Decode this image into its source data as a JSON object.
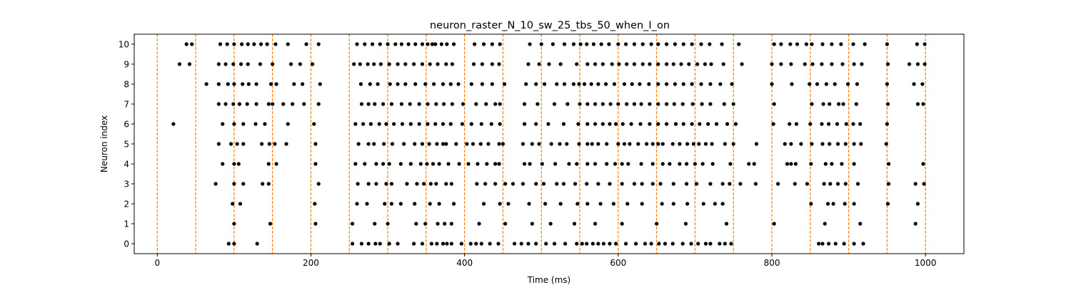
{
  "chart_data": {
    "type": "scatter",
    "title": "neuron_raster_N_10_sw_25_tbs_50_when_I_on",
    "xlabel": "Time (ms)",
    "ylabel": "Neuron index",
    "xlim": [
      -30,
      1050
    ],
    "ylim": [
      -0.5,
      10.5
    ],
    "x_ticks": [
      0,
      200,
      400,
      600,
      800,
      1000
    ],
    "y_ticks": [
      0,
      1,
      2,
      3,
      4,
      5,
      6,
      7,
      8,
      9,
      10
    ],
    "grid": false,
    "legend": "none",
    "marker_color": "#000000",
    "vline_color": "#ff7f0e",
    "vlines": [
      0,
      50,
      100,
      150,
      200,
      250,
      300,
      350,
      400,
      450,
      500,
      550,
      600,
      650,
      700,
      750,
      800,
      850,
      900,
      950,
      1000
    ],
    "series": [
      {
        "values": [
          [
            [
              93,
              100,
              130,
              254,
              266,
              275,
              284,
              290,
              302,
              313,
              334,
              345,
              357,
              364,
              372,
              377,
              383,
              396,
              408,
              415,
              422,
              433,
              444,
              465,
              474,
              483,
              493,
              506,
              517,
              531,
              546,
              553,
              559,
              567,
              574,
              581,
              589,
              597,
              610,
              623,
              635,
              643,
              653,
              661,
              671,
              684,
              695,
              704,
              714,
              720,
              732,
              739,
              747,
              861,
              866,
              874,
              883,
              894,
              907,
              919
            ]
          ],
          [
            [
              100,
              147,
              206,
              254,
              283,
              300,
              337,
              349,
              365,
              374,
              383,
              419,
              453,
              488,
              512,
              543,
              570,
              605,
              650,
              688,
              741,
              803,
              869,
              915,
              987
            ]
          ],
          [
            [
              98,
              108,
              205,
              260,
              273,
              296,
              305,
              317,
              335,
              355,
              367,
              386,
              425,
              446,
              457,
              484,
              505,
              525,
              547,
              560,
              577,
              594,
              612,
              631,
              657,
              672,
              690,
              711,
              726,
              736,
              851,
              873,
              880,
              895,
              907,
              951,
              990
            ]
          ],
          [
            [
              76,
              100,
              112,
              137,
              145,
              210,
              261,
              275,
              285,
              298,
              305,
              325,
              338,
              347,
              356,
              363,
              376,
              383,
              416,
              427,
              440,
              453,
              463,
              476,
              493,
              503,
              520,
              529,
              544,
              559,
              574,
              589,
              605,
              621,
              631,
              645,
              655,
              672,
              689,
              702,
              720,
              736,
              745,
              759,
              779,
              808,
              830,
              846,
              868,
              876,
              886,
              896,
              912,
              952,
              987,
              998
            ]
          ],
          [
            [
              85,
              100,
              106,
              145,
              155,
              206,
              258,
              270,
              285,
              294,
              302,
              317,
              330,
              343,
              351,
              359,
              367,
              379,
              393,
              405,
              417,
              429,
              440,
              445,
              478,
              485,
              501,
              518,
              536,
              546,
              560,
              570,
              585,
              596,
              605,
              613,
              630,
              645,
              658,
              667,
              680,
              689,
              700,
              710,
              723,
              746,
              770,
              777,
              820,
              825,
              831,
              851,
              870,
              878,
              891,
              907,
              952,
              997
            ]
          ],
          [
            [
              80,
              96,
              104,
              112,
              136,
              146,
              153,
              168,
              206,
              262,
              275,
              282,
              295,
              306,
              321,
              335,
              345,
              354,
              364,
              372,
              376,
              389,
              403,
              411,
              421,
              431,
              445,
              450,
              476,
              488,
              497,
              513,
              524,
              533,
              549,
              560,
              566,
              574,
              585,
              600,
              608,
              615,
              626,
              637,
              645,
              652,
              658,
              671,
              680,
              690,
              698,
              705,
              714,
              722,
              739,
              750,
              780,
              817,
              825,
              838,
              852,
              866,
              875,
              886,
              896,
              907,
              916,
              949
            ]
          ],
          [
            [
              21,
              85,
              100,
              112,
              128,
              140,
              170,
              204,
              258,
              268,
              278,
              289,
              298,
              308,
              319,
              330,
              341,
              352,
              362,
              372,
              382,
              397,
              409,
              422,
              435,
              446,
              478,
              493,
              509,
              529,
              548,
              560,
              570,
              580,
              589,
              597,
              606,
              617,
              629,
              641,
              652,
              663,
              675,
              685,
              696,
              706,
              717,
              728,
              742,
              753,
              802,
              823,
              832,
              850,
              865,
              874,
              885,
              897,
              906,
              915,
              950
            ]
          ],
          [
            [
              80,
              89,
              99,
              107,
              117,
              129,
              145,
              150,
              164,
              176,
              191,
              210,
              266,
              275,
              283,
              294,
              305,
              318,
              329,
              341,
              352,
              363,
              373,
              384,
              398,
              415,
              428,
              440,
              446,
              478,
              495,
              517,
              534,
              550,
              560,
              570,
              580,
              590,
              600,
              611,
              621,
              630,
              641,
              652,
              663,
              673,
              684,
              697,
              709,
              720,
              738,
              750,
              803,
              852,
              867,
              875,
              887,
              893,
              910,
              951,
              990,
              997
            ]
          ],
          [
            [
              64,
              80,
              92,
              100,
              111,
              119,
              129,
              148,
              155,
              178,
              189,
              212,
              265,
              277,
              287,
              303,
              313,
              323,
              336,
              349,
              360,
              372,
              382,
              392,
              409,
              423,
              436,
              452,
              480,
              493,
              504,
              520,
              530,
              542,
              549,
              556,
              565,
              574,
              584,
              595,
              608,
              618,
              628,
              640,
              652,
              663,
              674,
              685,
              696,
              708,
              720,
              733,
              748,
              800,
              826,
              849,
              859,
              871,
              882,
              899,
              911,
              950,
              985,
              996
            ]
          ],
          [
            [
              29,
              42,
              80,
              89,
              99,
              109,
              118,
              134,
              150,
              174,
              186,
              202,
              256,
              264,
              274,
              282,
              291,
              302,
              313,
              323,
              334,
              345,
              355,
              365,
              376,
              384,
              412,
              423,
              436,
              445,
              483,
              497,
              510,
              525,
              546,
              560,
              570,
              580,
              592,
              601,
              611,
              621,
              632,
              641,
              652,
              663,
              672,
              682,
              692,
              703,
              713,
              721,
              737,
              761,
              800,
              812,
              825,
              843,
              853,
              865,
              878,
              892,
              907,
              917,
              951,
              979,
              990,
              999
            ]
          ],
          [
            [
              38,
              45,
              82,
              91,
              100,
              110,
              118,
              126,
              135,
              143,
              154,
              170,
              194,
              210,
              260,
              270,
              280,
              290,
              300,
              310,
              318,
              327,
              336,
              345,
              352,
              358,
              362,
              370,
              377,
              386,
              413,
              425,
              436,
              446,
              485,
              500,
              515,
              530,
              542,
              551,
              559,
              568,
              578,
              588,
              600,
              610,
              621,
              632,
              643,
              652,
              663,
              674,
              685,
              696,
              708,
              719,
              735,
              757,
              803,
              812,
              824,
              833,
              845,
              852,
              866,
              878,
              890,
              906,
              921,
              950,
              989,
              999
            ]
          ]
        ]
      }
    ]
  }
}
